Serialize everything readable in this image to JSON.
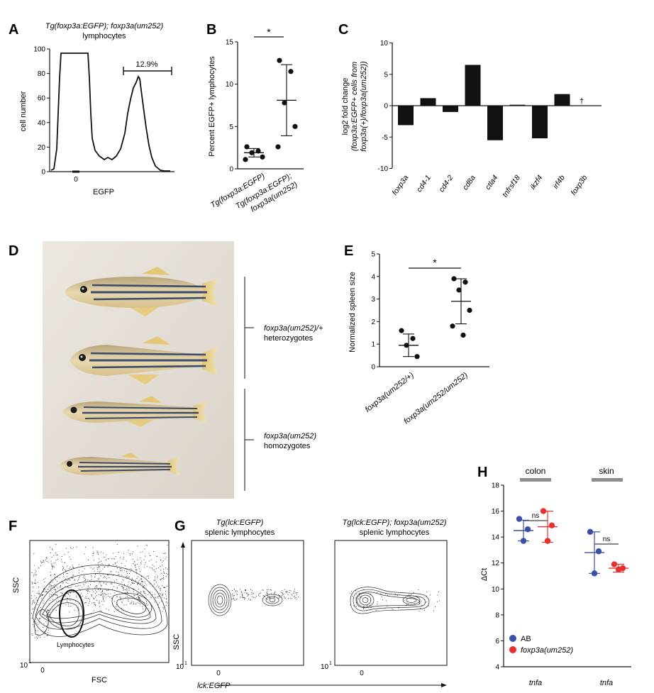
{
  "panel_letters": {
    "A": "A",
    "B": "B",
    "C": "C",
    "D": "D",
    "E": "E",
    "F": "F",
    "G": "G",
    "H": "H"
  },
  "panelA": {
    "title_line1": "Tg(foxp3a:EGFP); foxp3a(um252)",
    "title_line2": "lymphocytes",
    "ylabel": "cell number",
    "xlabel": "EGFP",
    "gate_label": "12.9%",
    "yticks": [
      "0",
      "20",
      "40",
      "60",
      "80",
      "100"
    ],
    "xtick": "0"
  },
  "panelB": {
    "ylabel": "Percent EGFP+ lymphocytes",
    "yticks": [
      "0",
      "5",
      "10",
      "15"
    ],
    "sig": "*",
    "xticks": [
      "Tg(foxp3a:EGFP)",
      "Tg(foxp3a:EGFP);",
      "foxp3a(um252)"
    ]
  },
  "panelC": {
    "ylabel1": "log2 fold change",
    "ylabel2": "(foxp3a:EGFP+ cells from",
    "ylabel3": "foxp3a(+)/foxp3a(um252))",
    "yticks": [
      "-10",
      "-5",
      "0",
      "5",
      "10"
    ],
    "dagger": "†"
  },
  "panelD": {
    "label1_line1": "foxp3a(um252)/+",
    "label1_line2": "heterozygotes",
    "label2_line1": "foxp3a(um252)",
    "label2_line2": "homozygotes"
  },
  "panelE": {
    "ylabel": "Normalized spleen size",
    "yticks": [
      "0",
      "1",
      "2",
      "3",
      "4",
      "5"
    ],
    "sig": "*",
    "xticks": [
      "foxp3a(um252/+)",
      "foxp3a(um252/um252)"
    ]
  },
  "panelF": {
    "ylabel": "SSC",
    "xlabel": "FSC",
    "gate": "Lymphocytes",
    "ytick": "10",
    "ysup": "1",
    "xtick": "0"
  },
  "panelG": {
    "left_title1": "Tg(lck:EGFP)",
    "left_title2": "splenic lymphocytes",
    "right_title1": "Tg(lck:EGFP); foxp3a(um252)",
    "right_title2": "splenic lymphocytes",
    "ylabel": "SSC",
    "xlabel": "lck:EGFP",
    "ytick": "10",
    "ysup": "1",
    "xtick": "0"
  },
  "panelH": {
    "ylabel": "ΔCt",
    "yticks": [
      "4",
      "6",
      "8",
      "10",
      "12",
      "14",
      "16",
      "18"
    ],
    "group1": "colon",
    "group2": "skin",
    "ns": "ns",
    "xticks": [
      "tnfa",
      "tnfa"
    ],
    "legend": [
      "AB",
      "foxp3a(um252)"
    ],
    "colors": {
      "AB": "#3b4fa5",
      "mutant": "#e8302e"
    }
  },
  "chart_data": [
    {
      "type": "scatter",
      "panel": "B",
      "ylabel": "Percent EGFP+ lymphocytes",
      "ylim": [
        0,
        15
      ],
      "categories": [
        "Tg(foxp3a:EGFP)",
        "Tg(foxp3a:EGFP); foxp3a(um252)"
      ],
      "series": [
        {
          "points": [
            2.6,
            2.1,
            1.9,
            1.4,
            1.1
          ],
          "mean": 1.9,
          "sd": 0.5
        },
        {
          "points": [
            12.8,
            11.5,
            7.8,
            5.0,
            2.6
          ],
          "mean": 8.1,
          "sd": 4.2
        }
      ],
      "annotation": "*"
    },
    {
      "type": "bar",
      "panel": "C",
      "categories": [
        "foxp3a",
        "cd4-1",
        "cd4-2",
        "cd8a",
        "ctla4",
        "tnfrsf18",
        "ikzf4",
        "irf4b",
        "foxp3b"
      ],
      "values": [
        -3.1,
        1.2,
        -1.0,
        6.5,
        -5.5,
        0.15,
        -5.2,
        1.85,
        0
      ],
      "ylim": [
        -10,
        10
      ]
    },
    {
      "type": "scatter",
      "panel": "E",
      "ylabel": "Normalized spleen size",
      "ylim": [
        0,
        5
      ],
      "categories": [
        "foxp3a(um252/+)",
        "foxp3a(um252/um252)"
      ],
      "series": [
        {
          "points": [
            1.6,
            1.25,
            0.95,
            0.45
          ],
          "mean": 0.95,
          "sd": 0.5
        },
        {
          "points": [
            3.9,
            3.75,
            3.4,
            2.5,
            1.8,
            1.4
          ],
          "mean": 2.9,
          "sd": 1.0
        }
      ],
      "annotation": "*"
    },
    {
      "type": "scatter",
      "panel": "H",
      "ylabel": "ΔCt",
      "ylim": [
        4,
        18
      ],
      "categories": [
        "colon",
        "skin"
      ],
      "series": [
        {
          "name": "AB",
          "points": [
            [
              15.4,
              14.6,
              13.7
            ],
            [
              14.4,
              12.9,
              11.2
            ]
          ],
          "mean": [
            14.5,
            12.8
          ],
          "sd": [
            0.8,
            1.6
          ]
        },
        {
          "name": "foxp3a(um252)",
          "points": [
            [
              16.0,
              14.9,
              13.7
            ],
            [
              11.9,
              11.6,
              11.5
            ]
          ],
          "mean": [
            14.8,
            11.6
          ],
          "sd": [
            1.2,
            0.3
          ]
        }
      ],
      "annotations": [
        "ns",
        "ns"
      ]
    }
  ]
}
